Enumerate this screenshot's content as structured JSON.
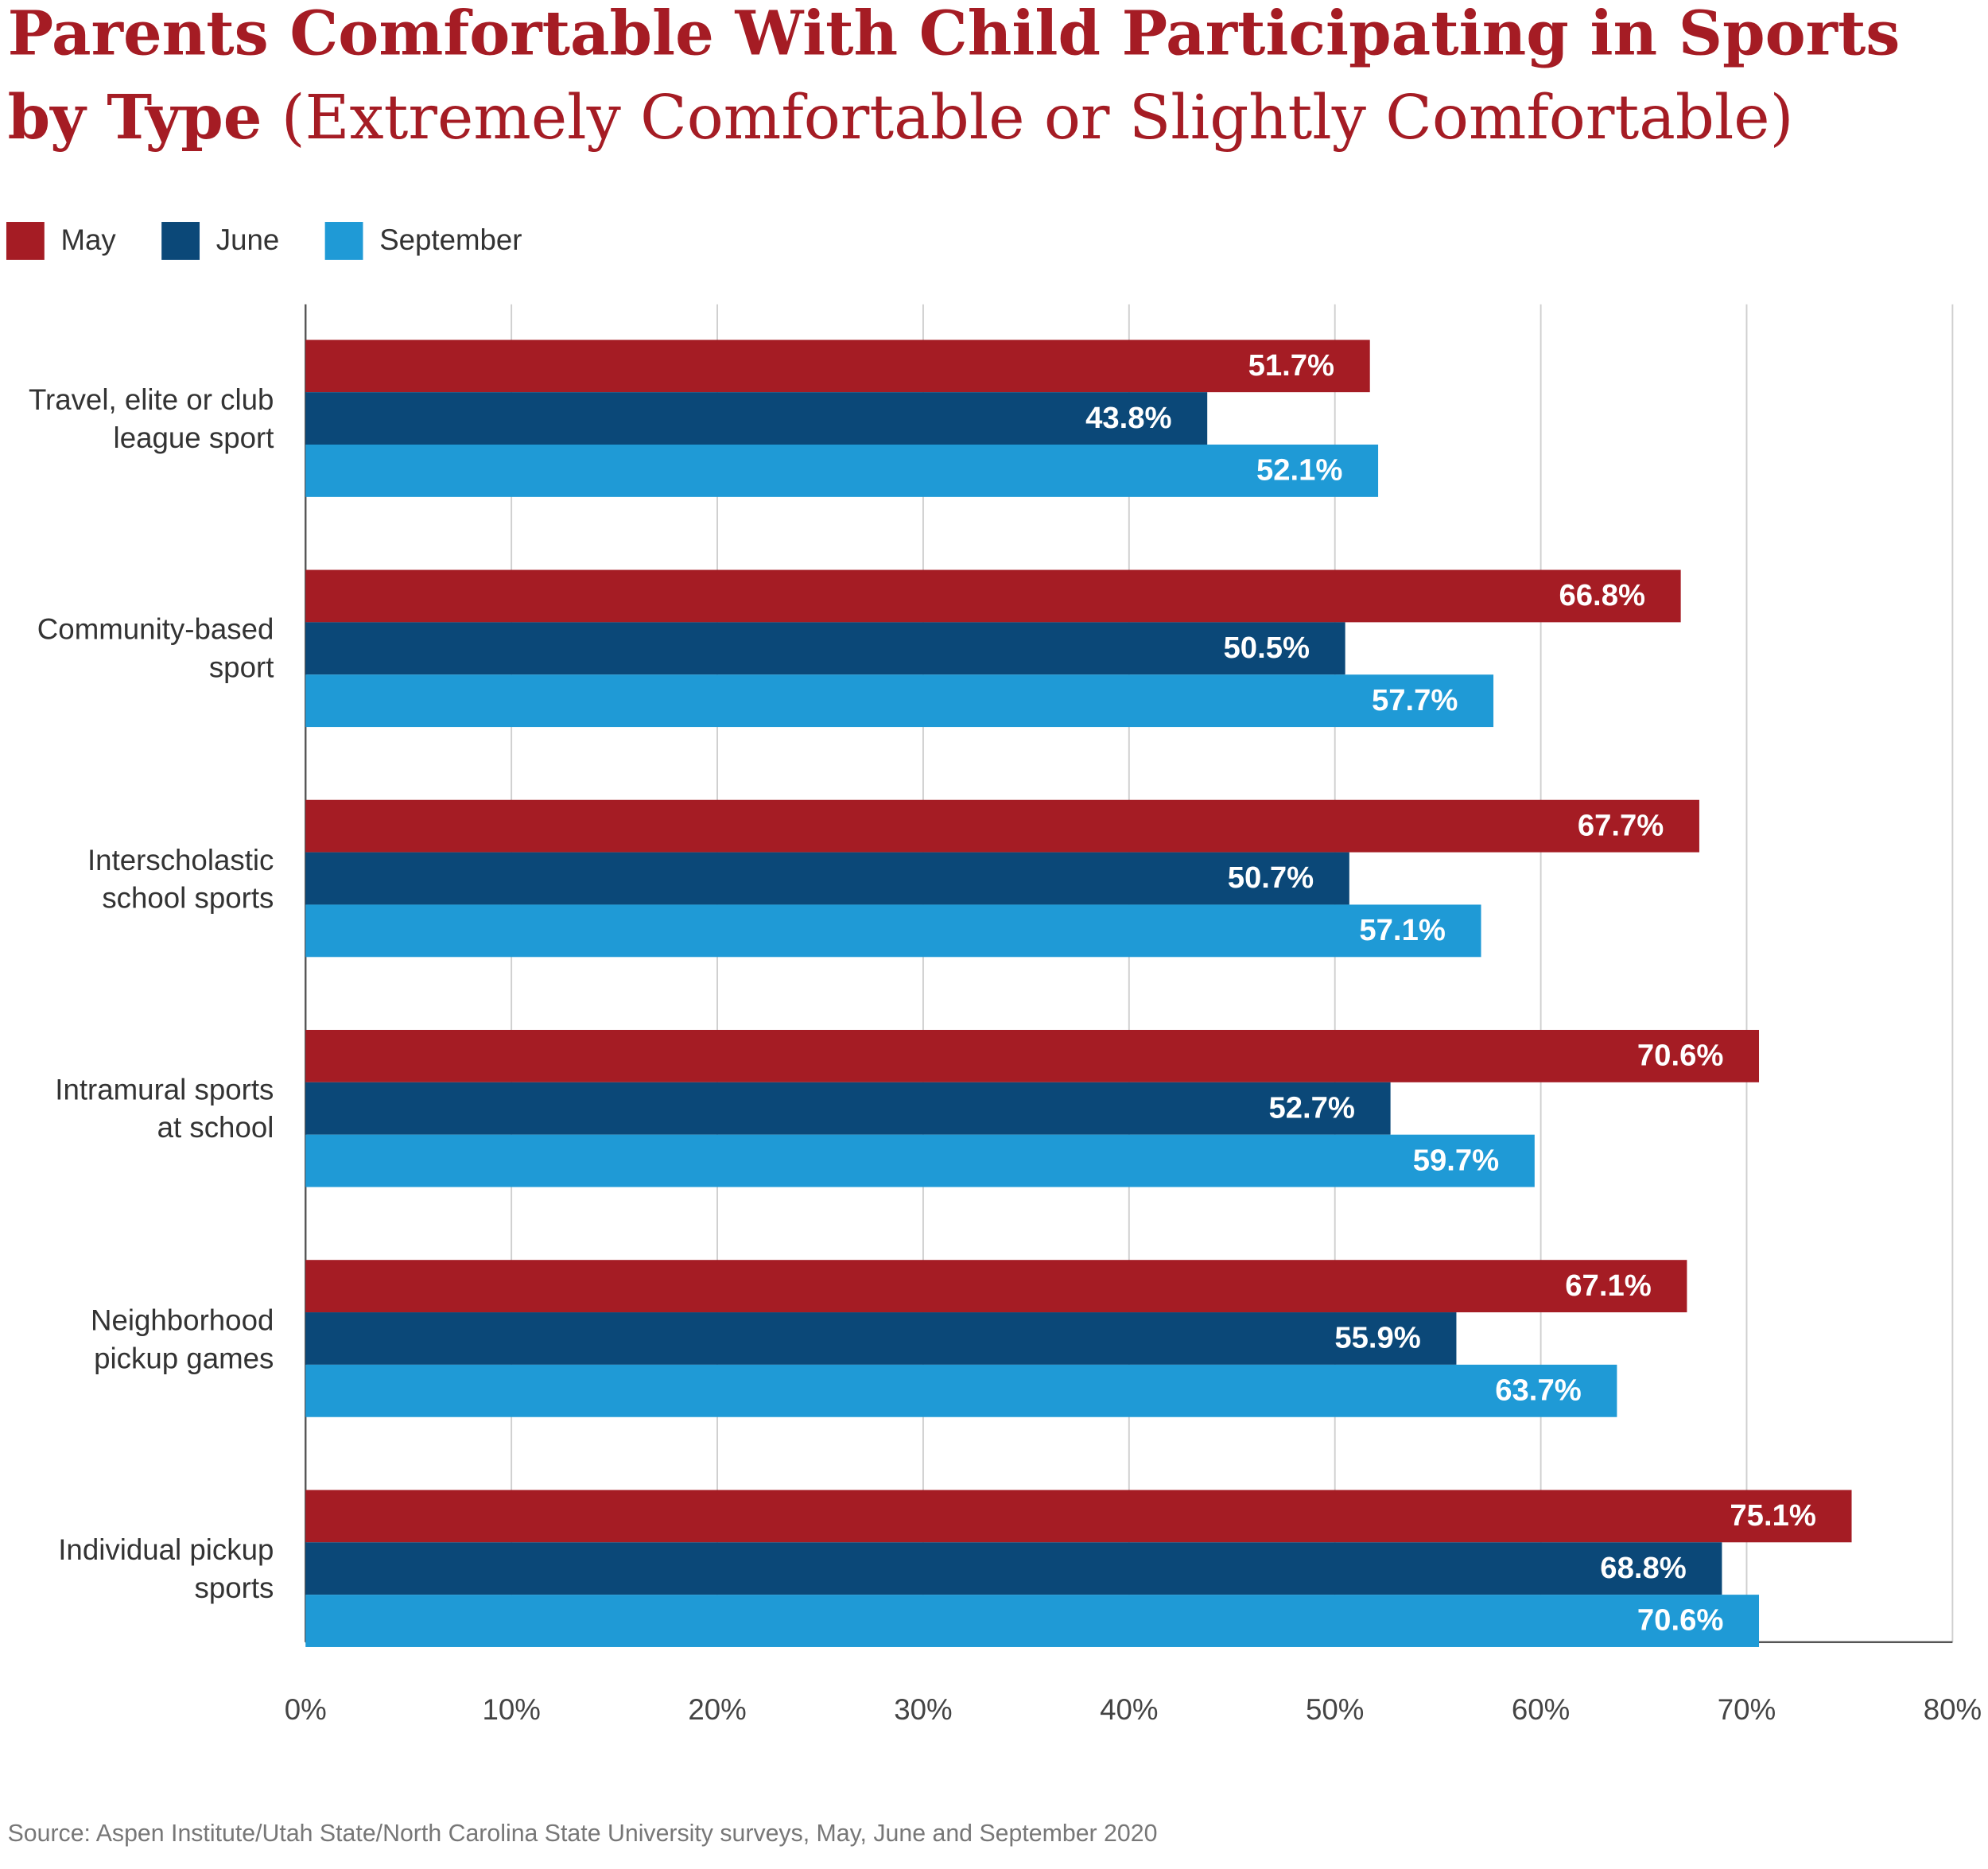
{
  "chart_data": {
    "type": "barh",
    "title": "Parents Comfortable With Child Participating in Sports by Type",
    "subtitle": "(Extremely Comfortable or Slightly Comfortable)",
    "source": "Source: Aspen Institute/Utah State/North Carolina State University surveys, May, June and September 2020",
    "categories": [
      "Travel, elite or club league sport",
      "Community-based sport",
      "Interscholastic school sports",
      "Intramural sports at school",
      "Neighborhood pickup games",
      "Individual pickup sports"
    ],
    "series": [
      {
        "name": "May",
        "color": "#a51c24",
        "values": [
          51.7,
          66.8,
          67.7,
          70.6,
          67.1,
          75.1
        ],
        "value_labels": [
          "51.7%",
          "66.8%",
          "67.7%",
          "70.6%",
          "67.1%",
          "75.1%"
        ]
      },
      {
        "name": "June",
        "color": "#0b4878",
        "values": [
          43.8,
          50.5,
          50.7,
          52.7,
          55.9,
          68.8
        ],
        "value_labels": [
          "43.8%",
          "50.5%",
          "50.7%",
          "52.7%",
          "55.9%",
          "68.8%"
        ]
      },
      {
        "name": "September",
        "color": "#1f9ad6",
        "values": [
          52.1,
          57.7,
          57.1,
          59.7,
          63.7,
          70.6
        ],
        "value_labels": [
          "52.1%",
          "57.7%",
          "57.1%",
          "59.7%",
          "63.7%",
          "70.6%"
        ]
      }
    ],
    "xlim": [
      0,
      80
    ],
    "xticks": [
      {
        "value": 0,
        "label": "0%"
      },
      {
        "value": 10,
        "label": "10%"
      },
      {
        "value": 20,
        "label": "20%"
      },
      {
        "value": 30,
        "label": "30%"
      },
      {
        "value": 40,
        "label": "40%"
      },
      {
        "value": 50,
        "label": "50%"
      },
      {
        "value": 60,
        "label": "60%"
      },
      {
        "value": 70,
        "label": "70%"
      },
      {
        "value": 80,
        "label": "80%"
      }
    ],
    "grid": true,
    "legend": "top-left"
  }
}
